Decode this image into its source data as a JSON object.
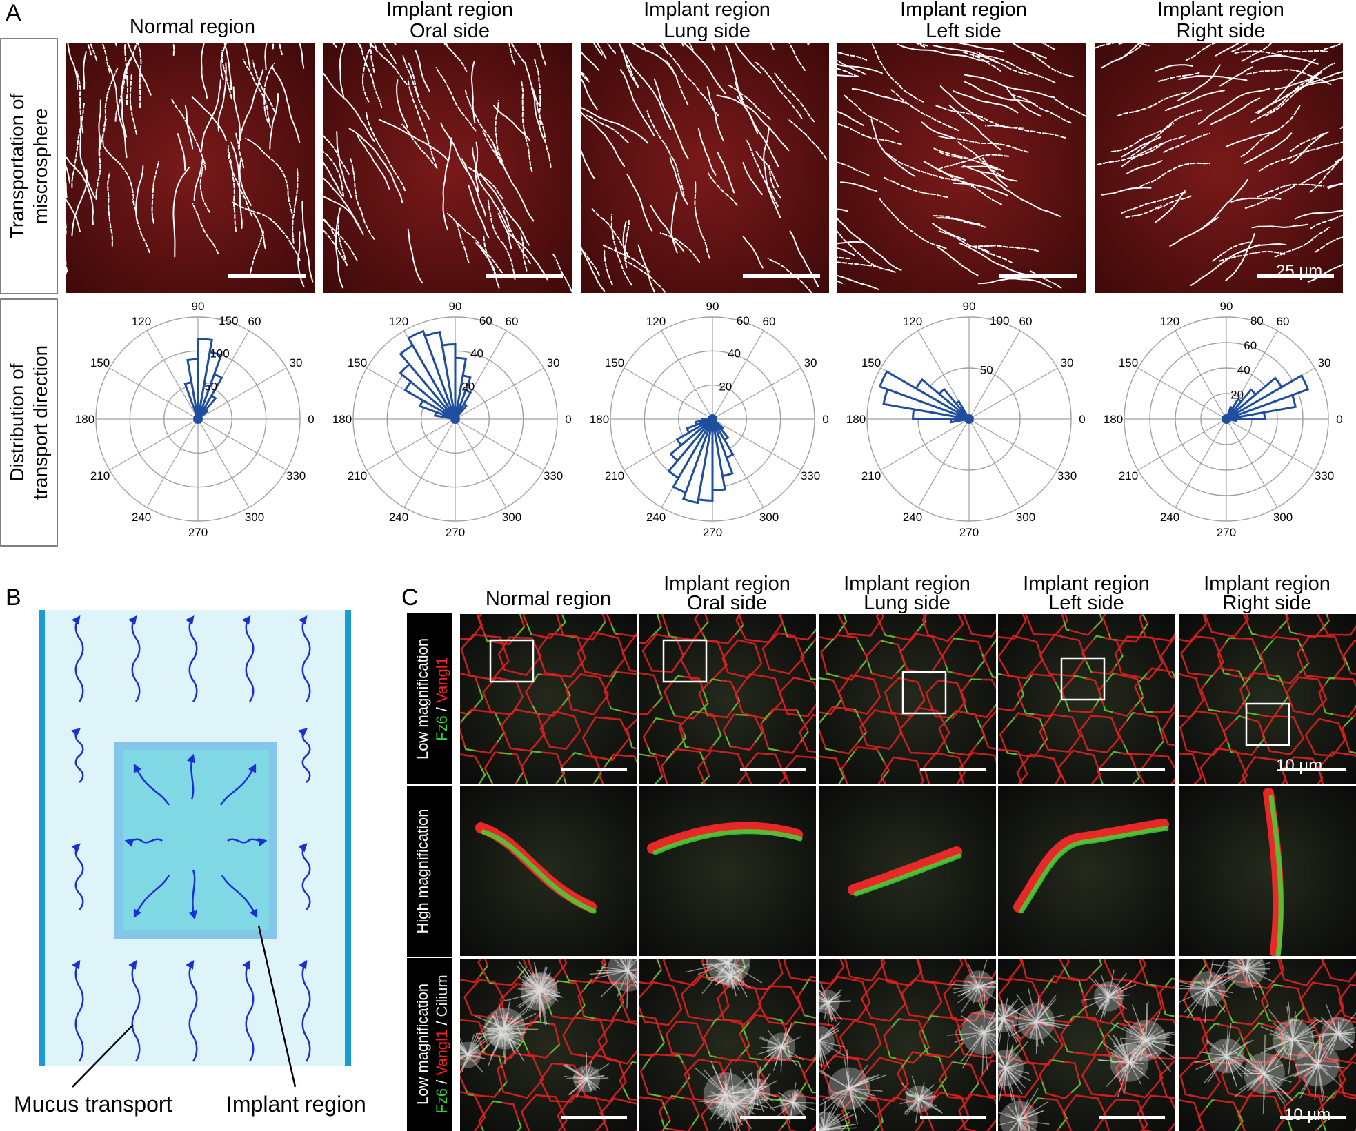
{
  "panel_a": {
    "letter": "A",
    "columns": [
      {
        "line1": "",
        "line2": "Normal region"
      },
      {
        "line1": "Implant region",
        "line2": "Oral side"
      },
      {
        "line1": "Implant region",
        "line2": "Lung side"
      },
      {
        "line1": "Implant region",
        "line2": "Left side"
      },
      {
        "line1": "Implant region",
        "line2": "Right side"
      }
    ],
    "row_labels": [
      {
        "line1": "Transportation of",
        "line2": "miscrosphere"
      },
      {
        "line1": "Distribution of",
        "line2": "transport direction"
      }
    ],
    "scale_bar": "25 µm",
    "colors": {
      "background": "#5a0f0f",
      "tracks": "#ffffff",
      "rose": "#1f4e9e",
      "grid": "#a0a0a0"
    }
  },
  "chart_data": [
    {
      "type": "polar_histogram",
      "panel": "Normal region",
      "angle_ticks": [
        0,
        30,
        60,
        90,
        120,
        150,
        180,
        210,
        240,
        270,
        300,
        330
      ],
      "radial_ticks": [
        50,
        100,
        150
      ],
      "rmax": 150,
      "bins_deg": [
        45,
        55,
        65,
        75,
        85,
        95,
        105
      ],
      "values": [
        18,
        40,
        70,
        100,
        118,
        88,
        55
      ]
    },
    {
      "type": "polar_histogram",
      "panel": "Implant region Oral side",
      "angle_ticks": [
        0,
        30,
        60,
        90,
        120,
        150,
        180,
        210,
        240,
        270,
        300,
        330
      ],
      "radial_ticks": [
        20,
        40,
        60
      ],
      "rmax": 60,
      "bins_deg": [
        55,
        65,
        75,
        85,
        95,
        105,
        115,
        125,
        135,
        145,
        155,
        165
      ],
      "values": [
        10,
        18,
        26,
        36,
        44,
        52,
        55,
        50,
        42,
        34,
        22,
        12
      ]
    },
    {
      "type": "polar_histogram",
      "panel": "Implant region Lung side",
      "angle_ticks": [
        0,
        30,
        60,
        90,
        120,
        150,
        180,
        210,
        240,
        270,
        300,
        330
      ],
      "radial_ticks": [
        20,
        40,
        60
      ],
      "rmax": 60,
      "bins_deg": [
        185,
        195,
        205,
        215,
        225,
        235,
        245,
        255,
        265,
        275,
        285,
        295,
        305,
        315
      ],
      "values": [
        6,
        10,
        16,
        24,
        32,
        40,
        46,
        50,
        48,
        42,
        34,
        24,
        14,
        8
      ]
    },
    {
      "type": "polar_histogram",
      "panel": "Implant region Left side",
      "angle_ticks": [
        0,
        30,
        60,
        90,
        120,
        150,
        180,
        210,
        240,
        270,
        300,
        330
      ],
      "radial_ticks": [
        50,
        100
      ],
      "rmax": 100,
      "bins_deg": [
        125,
        135,
        145,
        155,
        165,
        175,
        185
      ],
      "values": [
        20,
        38,
        60,
        93,
        85,
        55,
        18
      ]
    },
    {
      "type": "polar_histogram",
      "panel": "Implant region Right side",
      "angle_ticks": [
        0,
        30,
        60,
        90,
        120,
        150,
        180,
        210,
        240,
        270,
        300,
        330
      ],
      "radial_ticks": [
        20,
        40,
        60,
        80
      ],
      "rmax": 80,
      "bins_deg": [
        355,
        5,
        15,
        25,
        35,
        45,
        55,
        65
      ],
      "values": [
        8,
        30,
        55,
        68,
        50,
        30,
        18,
        10
      ]
    }
  ],
  "panel_b": {
    "letter": "B",
    "mucus_label": "Mucus transport",
    "implant_label": "Implant region",
    "colors": {
      "lumen": "#dff4f8",
      "wall": "#1a9ad6",
      "implant": "#7fd8e4",
      "implant_border": "#84c6ea",
      "arrow": "#1a2fd4"
    }
  },
  "panel_c": {
    "letter": "C",
    "columns": [
      {
        "line1": "",
        "line2": "Normal region"
      },
      {
        "line1": "Implant region",
        "line2": "Oral side"
      },
      {
        "line1": "Implant region",
        "line2": "Lung side"
      },
      {
        "line1": "Implant region",
        "line2": "Left side"
      },
      {
        "line1": "Implant region",
        "line2": "Right side"
      }
    ],
    "rows": [
      {
        "label": "Low magnification"
      },
      {
        "label": "High magnification"
      },
      {
        "label": "Low magnification"
      }
    ],
    "stain1": {
      "a": "Fz6",
      "sep": " / ",
      "b": "Vangl1"
    },
    "stain2": {
      "a": "Fz6",
      "sep1": " / ",
      "b": "Vangl1",
      "sep2": " / ",
      "c": "Cilium"
    },
    "scale_bar": "10 µm",
    "colors": {
      "fz6": "#2fd62f",
      "vangl1": "#ff2020",
      "cilium": "#e6e6e6"
    }
  }
}
